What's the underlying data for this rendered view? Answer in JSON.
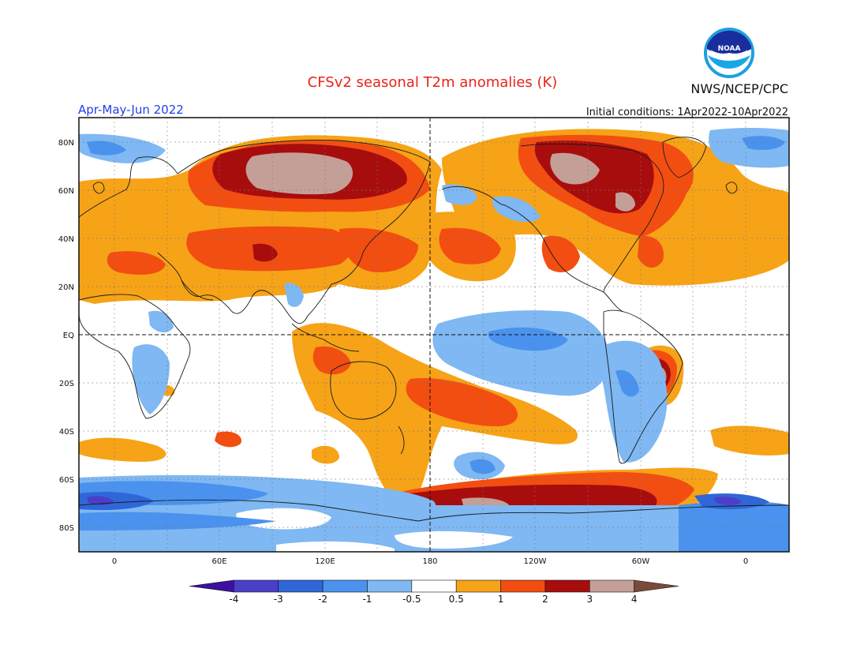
{
  "header": {
    "title": "CFSv2 seasonal T2m anomalies (K)",
    "season": "Apr-May-Jun 2022",
    "initial_conditions": "Initial conditions: 1Apr2022-10Apr2022",
    "agency": "NWS/NCEP/CPC",
    "logo_text": "NOAA"
  },
  "axes": {
    "lat_labels": [
      "80N",
      "60N",
      "40N",
      "20N",
      "EQ",
      "20S",
      "40S",
      "60S",
      "80S"
    ],
    "lon_labels": [
      "0",
      "60E",
      "120E",
      "180",
      "120W",
      "60W",
      "0"
    ]
  },
  "colorbar": {
    "ticks": [
      "-4",
      "-3",
      "-2",
      "-1",
      "-0.5",
      "0.5",
      "1",
      "2",
      "3",
      "4"
    ],
    "colors": [
      "#3c10a0",
      "#4b3fc9",
      "#2f66d8",
      "#4a92ee",
      "#7fb8f2",
      "#ffffff",
      "#f6a317",
      "#f24e12",
      "#a80d0d",
      "#c49f98",
      "#7a4a3a"
    ]
  },
  "map_colors": {
    "cold_weak": "#7fb8f2",
    "cold_mid": "#4a92ee",
    "cold_strong": "#2f66d8",
    "cold_extreme": "#4b3fc9",
    "warm_weak": "#f6a317",
    "warm_mid": "#f24e12",
    "warm_strong": "#a80d0d",
    "warm_extreme": "#c49f98"
  }
}
